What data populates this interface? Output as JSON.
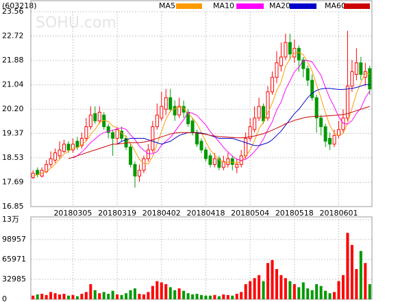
{
  "chart_data": {
    "type": "candlestick",
    "title": "(603218)",
    "watermark": "SOHU.com",
    "categories": [
      null,
      null,
      null,
      null,
      null,
      null,
      null,
      null,
      null,
      "20180305",
      null,
      null,
      null,
      null,
      null,
      null,
      null,
      null,
      null,
      "20180319",
      null,
      null,
      null,
      null,
      null,
      null,
      null,
      null,
      null,
      "20180402",
      null,
      null,
      null,
      null,
      null,
      null,
      null,
      null,
      null,
      "20180418",
      null,
      null,
      null,
      null,
      null,
      null,
      null,
      null,
      null,
      "20180504",
      null,
      null,
      null,
      null,
      null,
      null,
      null,
      null,
      null,
      "20180518",
      null,
      null,
      null,
      null,
      null,
      null,
      null,
      null,
      null,
      "20180601",
      null,
      null,
      null,
      null,
      null,
      null,
      null
    ],
    "open": [
      17.85,
      18.1,
      17.9,
      18.05,
      18.3,
      18.45,
      18.6,
      18.75,
      19.0,
      18.8,
      19.1,
      18.95,
      19.2,
      19.6,
      20.05,
      19.8,
      20.0,
      19.6,
      19.4,
      19.2,
      19.45,
      19.2,
      18.9,
      18.3,
      17.9,
      18.1,
      18.5,
      18.8,
      19.6,
      19.9,
      20.2,
      20.6,
      20.3,
      20.0,
      20.3,
      20.1,
      19.8,
      19.4,
      19.1,
      18.8,
      18.6,
      18.3,
      18.5,
      18.2,
      18.3,
      18.5,
      18.2,
      18.3,
      18.6,
      19.2,
      19.5,
      19.9,
      20.3,
      19.9,
      20.8,
      21.3,
      21.7,
      22.0,
      22.5,
      22.0,
      22.3,
      21.9,
      21.6,
      21.2,
      20.6,
      19.9,
      19.6,
      19.2,
      19.0,
      19.3,
      19.5,
      19.9,
      21.0,
      21.4,
      21.8,
      21.3,
      21.6
    ],
    "high": [
      18.1,
      18.2,
      18.2,
      18.45,
      18.75,
      18.85,
      19.1,
      19.15,
      19.1,
      19.2,
      19.25,
      19.4,
      19.9,
      20.3,
      20.3,
      20.3,
      20.1,
      19.7,
      19.5,
      19.6,
      19.6,
      19.3,
      19.0,
      18.4,
      18.3,
      18.6,
      19.0,
      19.8,
      20.4,
      20.8,
      20.9,
      20.9,
      20.5,
      20.6,
      20.5,
      20.2,
      19.9,
      19.5,
      19.2,
      18.9,
      18.7,
      18.7,
      18.6,
      18.6,
      18.7,
      18.6,
      18.5,
      18.8,
      19.4,
      19.9,
      20.3,
      20.6,
      20.4,
      21.0,
      21.5,
      22.2,
      22.5,
      22.8,
      22.8,
      22.6,
      22.4,
      22.0,
      21.7,
      21.4,
      20.7,
      20.0,
      19.7,
      19.4,
      19.5,
      19.8,
      20.2,
      22.9,
      21.9,
      22.3,
      22.0,
      21.8,
      21.7
    ],
    "low": [
      17.8,
      17.85,
      17.85,
      18.0,
      18.2,
      18.35,
      18.5,
      18.7,
      18.7,
      18.7,
      18.8,
      18.85,
      19.1,
      19.5,
      19.7,
      19.7,
      19.5,
      19.2,
      18.6,
      19.0,
      19.1,
      18.8,
      18.2,
      17.5,
      17.7,
      18.0,
      18.4,
      18.7,
      19.5,
      19.8,
      20.0,
      20.1,
      19.8,
      19.9,
      19.9,
      19.6,
      19.3,
      18.9,
      18.7,
      18.4,
      18.2,
      18.2,
      18.1,
      18.1,
      18.2,
      18.1,
      18.0,
      18.2,
      18.5,
      19.1,
      19.4,
      19.8,
      19.7,
      19.8,
      20.7,
      21.1,
      21.5,
      21.9,
      21.9,
      21.8,
      21.5,
      21.3,
      21.0,
      20.5,
      19.4,
      19.3,
      18.9,
      18.8,
      18.9,
      19.2,
      19.4,
      19.8,
      20.8,
      21.2,
      21.2,
      21.0,
      20.7
    ],
    "close": [
      18.0,
      17.95,
      18.1,
      18.3,
      18.5,
      18.7,
      18.8,
      19.0,
      18.8,
      19.0,
      18.9,
      19.2,
      19.6,
      20.0,
      19.8,
      20.1,
      19.6,
      19.4,
      19.2,
      19.5,
      19.2,
      18.9,
      18.3,
      17.9,
      18.1,
      18.5,
      18.8,
      19.6,
      20.0,
      20.3,
      20.6,
      20.2,
      20.0,
      20.3,
      20.1,
      19.7,
      19.4,
      19.0,
      18.8,
      18.5,
      18.3,
      18.5,
      18.2,
      18.4,
      18.5,
      18.3,
      18.3,
      18.6,
      19.2,
      19.6,
      19.9,
      20.3,
      19.8,
      20.8,
      21.3,
      21.8,
      22.0,
      22.5,
      22.1,
      22.3,
      21.9,
      21.6,
      21.2,
      20.6,
      19.9,
      19.6,
      19.1,
      19.0,
      19.3,
      19.5,
      19.9,
      21.0,
      21.5,
      21.8,
      21.4,
      21.5,
      20.9
    ],
    "up_color": "#ff0000",
    "down_color": "#009900",
    "ylim": [
      16.85,
      23.56
    ],
    "yticks": [
      16.85,
      17.69,
      18.53,
      19.37,
      {
        "value": 20.2,
        "label": "20.20"
      },
      21.04,
      21.88,
      22.72,
      23.56
    ],
    "grid": true,
    "series": [
      {
        "name": "MA5",
        "color": "#ff9900",
        "values": [
          17.9,
          17.95,
          18.0,
          18.05,
          18.17,
          18.31,
          18.48,
          18.66,
          18.76,
          18.86,
          18.88,
          18.98,
          19.1,
          19.34,
          19.5,
          19.74,
          19.82,
          19.78,
          19.62,
          19.56,
          19.38,
          19.24,
          19.02,
          18.76,
          18.48,
          18.34,
          18.32,
          18.58,
          19.0,
          19.44,
          19.86,
          20.14,
          20.22,
          20.28,
          20.24,
          20.06,
          19.9,
          19.7,
          19.4,
          19.08,
          18.8,
          18.62,
          18.46,
          18.38,
          18.38,
          18.38,
          18.34,
          18.42,
          18.58,
          18.8,
          19.12,
          19.52,
          19.76,
          20.08,
          20.42,
          20.84,
          21.14,
          21.68,
          21.94,
          22.14,
          22.16,
          22.08,
          21.82,
          21.52,
          21.04,
          20.58,
          20.08,
          19.64,
          19.38,
          19.3,
          19.36,
          19.74,
          20.24,
          20.74,
          21.12,
          21.44,
          21.42
        ]
      },
      {
        "name": "MA10",
        "color": "#ff00ff",
        "values": [
          null,
          null,
          null,
          null,
          null,
          null,
          null,
          null,
          null,
          18.52,
          18.6,
          18.73,
          18.88,
          19.05,
          19.18,
          19.31,
          19.4,
          19.44,
          19.48,
          19.53,
          19.56,
          19.51,
          19.32,
          19.16,
          18.93,
          18.79,
          18.67,
          18.67,
          18.74,
          18.96,
          19.1,
          19.23,
          19.43,
          19.64,
          19.84,
          20.1,
          20.06,
          19.99,
          19.82,
          19.66,
          19.43,
          19.26,
          19.08,
          18.89,
          18.73,
          18.59,
          18.48,
          18.44,
          18.48,
          18.59,
          18.75,
          18.93,
          19.17,
          19.5,
          19.77,
          20.18,
          20.45,
          20.88,
          21.18,
          21.49,
          21.65,
          21.88,
          21.88,
          21.83,
          21.59,
          21.37,
          20.95,
          20.58,
          20.28,
          19.94,
          19.72,
          19.69,
          19.81,
          20.06,
          20.24,
          20.59,
          20.83
        ]
      },
      {
        "name": "MA20",
        "color": "#0000cc",
        "values": [
          null,
          null,
          null,
          null,
          null,
          null,
          null,
          null,
          null,
          null,
          null,
          null,
          null,
          null,
          null,
          null,
          null,
          null,
          null,
          19.0,
          19.1,
          19.15,
          19.2,
          19.2,
          19.2,
          19.2,
          19.15,
          19.1,
          19.05,
          19.0,
          19.05,
          19.1,
          19.2,
          19.3,
          19.35,
          19.4,
          19.4,
          19.4,
          19.38,
          19.35,
          19.3,
          19.25,
          19.2,
          19.2,
          19.2,
          19.2,
          19.15,
          19.1,
          19.05,
          19.0,
          18.95,
          18.95,
          19.0,
          19.05,
          19.15,
          19.3,
          19.45,
          19.65,
          19.85,
          20.05,
          20.2,
          20.4,
          20.6,
          20.75,
          20.85,
          20.9,
          20.92,
          20.92,
          20.9,
          20.88,
          20.88,
          20.9,
          20.92,
          20.95,
          21.0,
          21.05,
          21.05
        ]
      },
      {
        "name": "MA60",
        "color": "#cc0000",
        "values": [
          null,
          null,
          null,
          null,
          null,
          null,
          null,
          null,
          18.5,
          18.55,
          18.6,
          18.65,
          18.7,
          18.75,
          18.8,
          18.85,
          18.9,
          18.95,
          19.0,
          19.0,
          19.02,
          19.04,
          19.05,
          19.05,
          19.05,
          19.07,
          19.1,
          19.15,
          19.2,
          19.25,
          19.3,
          19.35,
          19.38,
          19.4,
          19.4,
          19.4,
          19.4,
          19.38,
          19.36,
          19.34,
          19.3,
          19.28,
          19.26,
          19.25,
          19.24,
          19.23,
          19.22,
          19.22,
          19.23,
          19.25,
          19.28,
          19.32,
          19.36,
          19.42,
          19.48,
          19.55,
          19.62,
          19.7,
          19.76,
          19.82,
          19.86,
          19.9,
          19.93,
          19.95,
          19.96,
          19.96,
          19.97,
          19.98,
          19.99,
          20.0,
          20.02,
          20.05,
          20.1,
          20.15,
          20.2,
          20.25,
          20.3
        ]
      }
    ],
    "volume": {
      "values": [
        6000,
        8000,
        9000,
        7000,
        12000,
        10000,
        8000,
        9000,
        6000,
        7000,
        5000,
        9000,
        12000,
        25000,
        15000,
        10000,
        12000,
        9000,
        14000,
        8000,
        7000,
        10000,
        15000,
        18000,
        9000,
        8000,
        12000,
        22000,
        30000,
        28000,
        25000,
        20000,
        15000,
        18000,
        14000,
        10000,
        8000,
        9000,
        7000,
        6000,
        6000,
        7000,
        5000,
        8000,
        7000,
        6000,
        9000,
        12000,
        25000,
        30000,
        35000,
        40000,
        30000,
        60000,
        65000,
        50000,
        40000,
        35000,
        30000,
        25000,
        20000,
        28000,
        18000,
        15000,
        25000,
        22000,
        14000,
        10000,
        12000,
        30000,
        40000,
        110000,
        90000,
        50000,
        80000,
        60000,
        25000
      ],
      "ylim": [
        0,
        131943
      ],
      "yticks": [
        0,
        32985,
        65971,
        98957,
        {
          "value": 131943,
          "label": "13万"
        }
      ]
    }
  }
}
